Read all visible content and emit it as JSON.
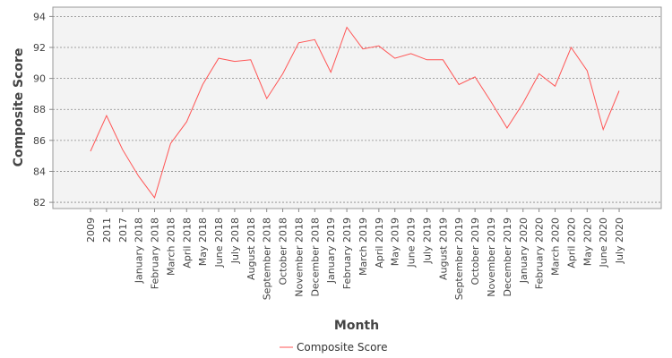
{
  "chart_data": {
    "type": "line",
    "xlabel": "Month",
    "ylabel": "Composite Score",
    "ylim": [
      81.6,
      94.6
    ],
    "yticks": [
      82,
      84,
      86,
      88,
      90,
      92,
      94
    ],
    "grid": true,
    "legend": {
      "position": "bottom-center"
    },
    "categories": [
      "2009",
      "2011",
      "2017",
      "January 2018",
      "February 2018",
      "March 2018",
      "April 2018",
      "May 2018",
      "June 2018",
      "July 2018",
      "August 2018",
      "September 2018",
      "October 2018",
      "November 2018",
      "December 2018",
      "January 2019",
      "February 2019",
      "March 2019",
      "April 2019",
      "May 2019",
      "June 2019",
      "July 2019",
      "August 2019",
      "September 2019",
      "October 2019",
      "November 2019",
      "December 2019",
      "January 2020",
      "February 2020",
      "March 2020",
      "April 2020",
      "May 2020",
      "June 2020",
      "July 2020"
    ],
    "series": [
      {
        "name": "Composite Score",
        "color": "#ff5555",
        "values": [
          85.3,
          87.6,
          85.4,
          83.7,
          82.3,
          85.8,
          87.2,
          89.6,
          91.3,
          91.1,
          91.2,
          88.7,
          90.3,
          92.3,
          92.5,
          90.4,
          93.3,
          91.9,
          92.1,
          91.3,
          91.6,
          91.2,
          91.2,
          89.6,
          90.1,
          88.5,
          86.8,
          88.4,
          90.3,
          89.5,
          92.0,
          90.5,
          86.7,
          89.2
        ]
      }
    ]
  }
}
